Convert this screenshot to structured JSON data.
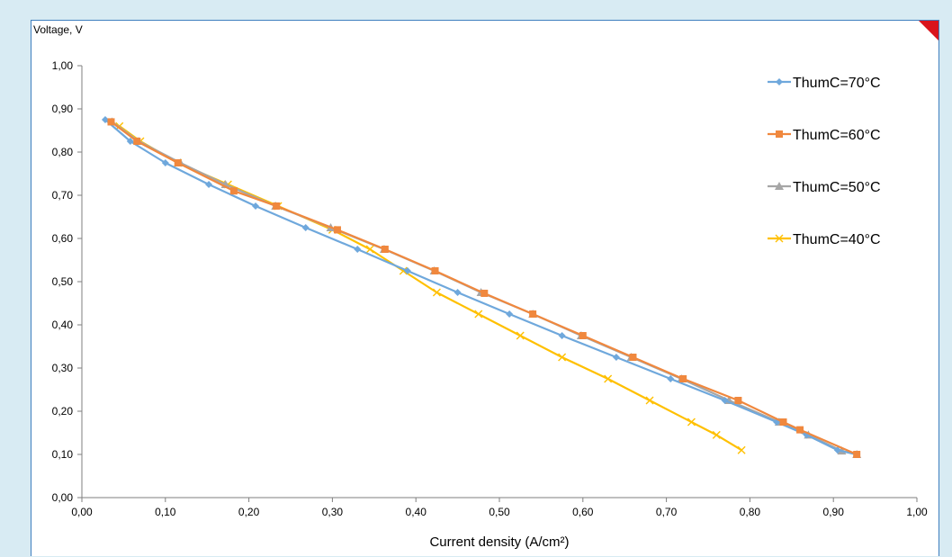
{
  "chart_data": {
    "type": "line",
    "title": "",
    "xlabel": "Current density (A/cm²)",
    "ylabel": "Voltage, V",
    "xlim": [
      0,
      1
    ],
    "ylim": [
      0,
      1
    ],
    "xticks": [
      "0,00",
      "0,10",
      "0,20",
      "0,30",
      "0,40",
      "0,50",
      "0,60",
      "0,70",
      "0,80",
      "0,90",
      "1,00"
    ],
    "yticks": [
      "0,00",
      "0,10",
      "0,20",
      "0,30",
      "0,40",
      "0,50",
      "0,60",
      "0,70",
      "0,80",
      "0,90",
      "1,00"
    ],
    "grid": false,
    "legend_position": "right",
    "series": [
      {
        "name": "ThumC=70°C",
        "color": "#6fa8dc",
        "marker": "diamond",
        "x": [
          0.028,
          0.058,
          0.1,
          0.152,
          0.208,
          0.268,
          0.33,
          0.39,
          0.45,
          0.512,
          0.575,
          0.64,
          0.705,
          0.77,
          0.832,
          0.868,
          0.905,
          0.928
        ],
        "y": [
          0.875,
          0.825,
          0.775,
          0.725,
          0.675,
          0.625,
          0.575,
          0.525,
          0.475,
          0.425,
          0.375,
          0.325,
          0.275,
          0.225,
          0.175,
          0.145,
          0.11,
          0.1
        ]
      },
      {
        "name": "ThumC=60°C",
        "color": "#f0883e",
        "marker": "square",
        "x": [
          0.035,
          0.066,
          0.115,
          0.182,
          0.233,
          0.306,
          0.363,
          0.423,
          0.482,
          0.54,
          0.6,
          0.66,
          0.72,
          0.786,
          0.84,
          0.86,
          0.928
        ],
        "y": [
          0.87,
          0.825,
          0.775,
          0.71,
          0.675,
          0.62,
          0.575,
          0.525,
          0.473,
          0.425,
          0.375,
          0.325,
          0.275,
          0.225,
          0.175,
          0.157,
          0.1
        ]
      },
      {
        "name": "ThumC=50°C",
        "color": "#a6a6a6",
        "marker": "triangle",
        "x": [
          0.036,
          0.068,
          0.118,
          0.172,
          0.232,
          0.298,
          0.362,
          0.422,
          0.478,
          0.54,
          0.598,
          0.658,
          0.718,
          0.775,
          0.835,
          0.87,
          0.91,
          0.928
        ],
        "y": [
          0.87,
          0.825,
          0.775,
          0.725,
          0.675,
          0.625,
          0.575,
          0.525,
          0.475,
          0.425,
          0.375,
          0.325,
          0.275,
          0.225,
          0.175,
          0.145,
          0.108,
          0.1
        ]
      },
      {
        "name": "ThumC=40°C",
        "color": "#ffc000",
        "marker": "x",
        "x": [
          0.045,
          0.07,
          0.115,
          0.175,
          0.235,
          0.3,
          0.345,
          0.385,
          0.425,
          0.475,
          0.525,
          0.575,
          0.63,
          0.68,
          0.73,
          0.76,
          0.79
        ],
        "y": [
          0.86,
          0.825,
          0.775,
          0.725,
          0.675,
          0.62,
          0.575,
          0.525,
          0.475,
          0.425,
          0.375,
          0.325,
          0.275,
          0.225,
          0.175,
          0.145,
          0.11
        ]
      }
    ]
  }
}
